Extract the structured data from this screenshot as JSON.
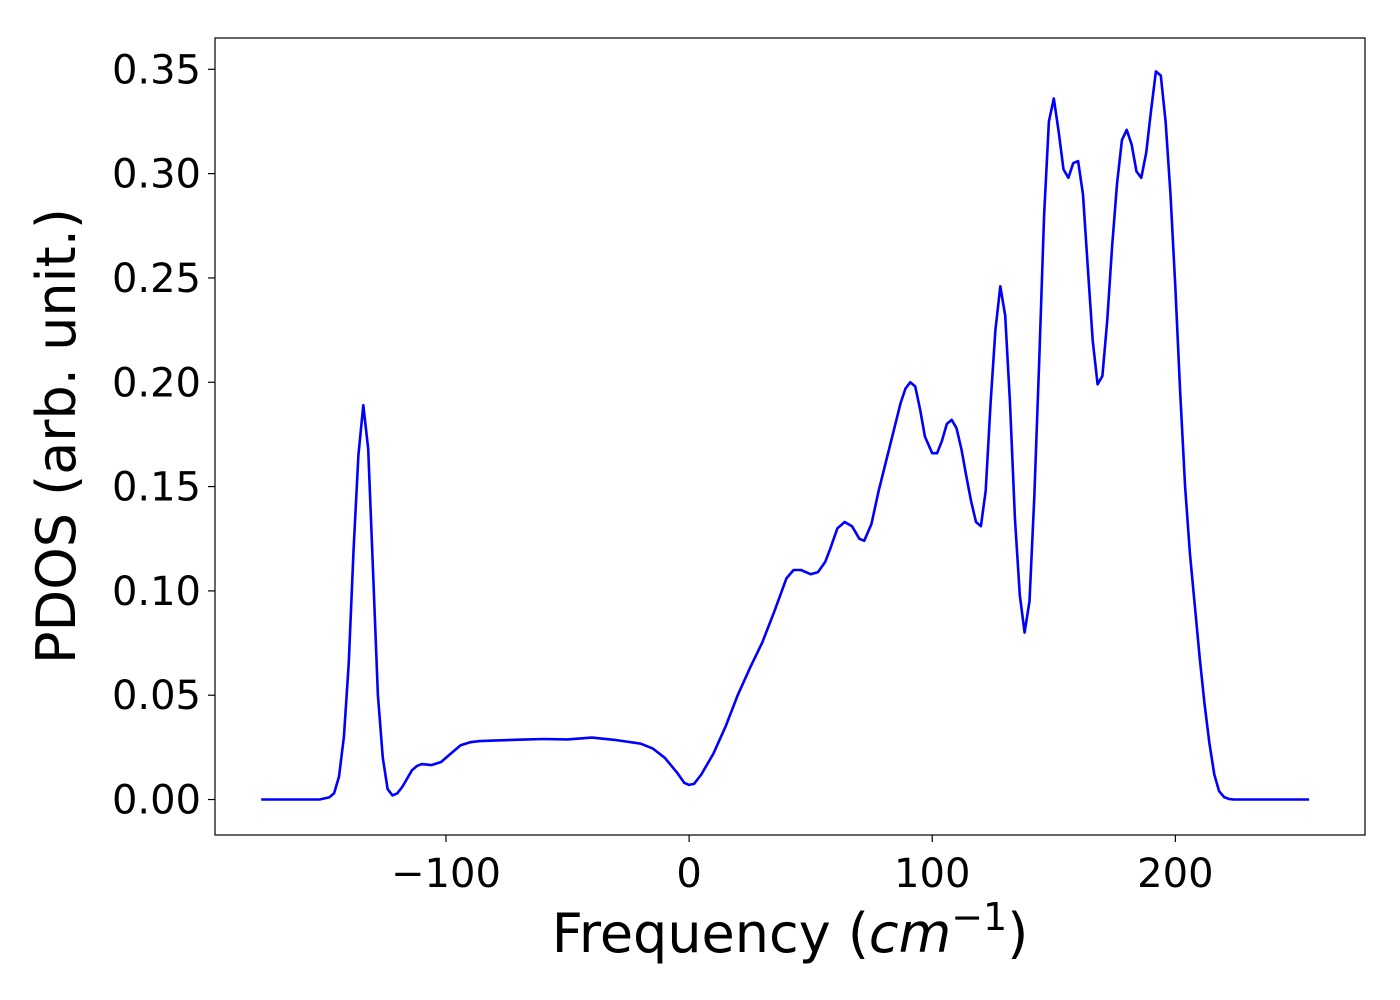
{
  "chart_data": {
    "type": "line",
    "title": "",
    "xlabel_main": "Frequency (",
    "xlabel_italic": "cm",
    "xlabel_sup": "−1",
    "xlabel_close": ")",
    "ylabel": "PDOS (arb. unit.)",
    "xlim": [
      -195,
      278
    ],
    "ylim": [
      -0.017,
      0.365
    ],
    "x_ticks": [
      -100,
      0,
      100,
      200
    ],
    "x_tick_labels": [
      "−100",
      "0",
      "100",
      "200"
    ],
    "y_ticks": [
      0.0,
      0.05,
      0.1,
      0.15,
      0.2,
      0.25,
      0.3,
      0.35
    ],
    "y_tick_labels": [
      "0.00",
      "0.05",
      "0.10",
      "0.15",
      "0.20",
      "0.25",
      "0.30",
      "0.35"
    ],
    "grid": false,
    "series": [
      {
        "color": "#0000ff",
        "x": [
          -176,
          -160,
          -152,
          -148,
          -146,
          -144,
          -142,
          -140,
          -138,
          -136,
          -134,
          -132,
          -130,
          -128,
          -126,
          -124,
          -122,
          -120,
          -118,
          -116,
          -114,
          -112,
          -110,
          -106,
          -102,
          -98,
          -94,
          -90,
          -86,
          -82,
          -70,
          -60,
          -50,
          -40,
          -30,
          -20,
          -15,
          -10,
          -5,
          -2,
          0,
          2,
          5,
          10,
          15,
          20,
          25,
          30,
          35,
          40,
          43,
          46,
          50,
          53,
          56,
          58,
          61,
          64,
          67,
          70,
          72,
          75,
          78,
          81,
          84,
          87,
          89,
          91,
          93,
          95,
          97,
          100,
          102,
          104,
          106,
          108,
          110,
          112,
          114,
          116,
          118,
          120,
          122,
          124,
          126,
          128,
          130,
          132,
          134,
          136,
          138,
          140,
          142,
          144,
          146,
          148,
          150,
          152,
          154,
          156,
          158,
          160,
          162,
          164,
          166,
          168,
          170,
          172,
          174,
          176,
          178,
          180,
          182,
          184,
          186,
          188,
          190,
          192,
          194,
          196,
          198,
          200,
          202,
          204,
          206,
          208,
          210,
          212,
          214,
          216,
          218,
          220,
          222,
          224,
          226,
          228,
          230,
          235,
          240,
          255
        ],
        "y": [
          0.0,
          0.0,
          0.0,
          0.001,
          0.003,
          0.011,
          0.03,
          0.065,
          0.12,
          0.165,
          0.189,
          0.168,
          0.11,
          0.05,
          0.02,
          0.005,
          0.002,
          0.003,
          0.006,
          0.01,
          0.014,
          0.016,
          0.017,
          0.0165,
          0.018,
          0.022,
          0.026,
          0.0275,
          0.028,
          0.0282,
          0.0287,
          0.029,
          0.0288,
          0.0297,
          0.0285,
          0.0268,
          0.0245,
          0.02,
          0.013,
          0.008,
          0.007,
          0.0075,
          0.012,
          0.022,
          0.035,
          0.05,
          0.063,
          0.075,
          0.09,
          0.106,
          0.11,
          0.11,
          0.108,
          0.109,
          0.114,
          0.12,
          0.13,
          0.133,
          0.131,
          0.125,
          0.124,
          0.132,
          0.148,
          0.162,
          0.176,
          0.19,
          0.197,
          0.2,
          0.198,
          0.187,
          0.174,
          0.166,
          0.166,
          0.172,
          0.18,
          0.182,
          0.178,
          0.168,
          0.155,
          0.143,
          0.133,
          0.131,
          0.148,
          0.19,
          0.225,
          0.246,
          0.232,
          0.19,
          0.135,
          0.098,
          0.08,
          0.095,
          0.145,
          0.21,
          0.28,
          0.325,
          0.336,
          0.32,
          0.302,
          0.298,
          0.305,
          0.306,
          0.29,
          0.255,
          0.22,
          0.199,
          0.203,
          0.23,
          0.265,
          0.295,
          0.316,
          0.321,
          0.314,
          0.301,
          0.298,
          0.31,
          0.33,
          0.349,
          0.347,
          0.325,
          0.29,
          0.245,
          0.195,
          0.15,
          0.118,
          0.093,
          0.068,
          0.046,
          0.027,
          0.012,
          0.004,
          0.0012,
          0.0003,
          0.0,
          0.0,
          0.0,
          0.0,
          0.0,
          0.0,
          0.0
        ]
      }
    ]
  }
}
